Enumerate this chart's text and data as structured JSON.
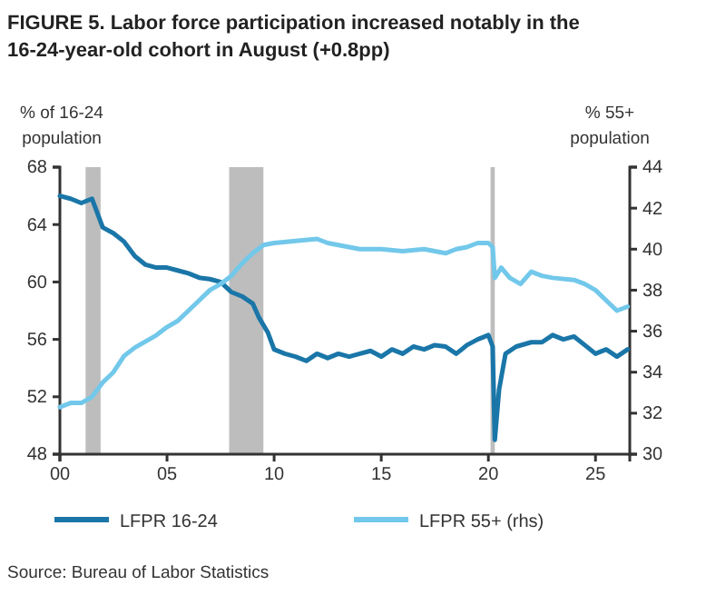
{
  "chart_data": {
    "type": "line",
    "title": "FIGURE 5. Labor force participation increased notably in the 16-24-year-old cohort in August (+0.8pp)",
    "ylabel": "% of 16-24 population",
    "y2label": "% 55+ population",
    "annotations": [
      "Source: Bureau of Labor Statistics"
    ],
    "xlim": [
      2000,
      2026.6
    ],
    "xticks": [
      {
        "value": 2000,
        "label": "00"
      },
      {
        "value": 2005,
        "label": "05"
      },
      {
        "value": 2010,
        "label": "10"
      },
      {
        "value": 2015,
        "label": "15"
      },
      {
        "value": 2020,
        "label": "20"
      },
      {
        "value": 2025,
        "label": "25"
      }
    ],
    "ylim": [
      48,
      68
    ],
    "yticks": [
      48,
      52,
      56,
      60,
      64,
      68
    ],
    "y2lim": [
      30,
      44
    ],
    "y2ticks": [
      30,
      32,
      34,
      36,
      38,
      40,
      42,
      44
    ],
    "bands": [
      {
        "axis": "x",
        "from": 2001.2,
        "to": 2001.9,
        "color": "#bdbdbd"
      },
      {
        "axis": "x",
        "from": 2007.9,
        "to": 2009.5,
        "color": "#bdbdbd"
      },
      {
        "axis": "x",
        "from": 2020.1,
        "to": 2020.3,
        "color": "#bdbdbd"
      }
    ],
    "legend": "bottom",
    "series": [
      {
        "name": "LFPR 16-24",
        "color": "#1a76a8",
        "x": [
          2000,
          2000.5,
          2001,
          2001.5,
          2002,
          2002.5,
          2003,
          2003.5,
          2004,
          2004.5,
          2005,
          2005.5,
          2006,
          2006.5,
          2007,
          2007.5,
          2008,
          2008.5,
          2009,
          2009.3,
          2009.7,
          2010,
          2010.5,
          2011,
          2011.5,
          2012,
          2012.5,
          2013,
          2013.5,
          2014,
          2014.5,
          2015,
          2015.5,
          2016,
          2016.5,
          2017,
          2017.5,
          2018,
          2018.5,
          2019,
          2019.5,
          2020,
          2020.2,
          2020.3,
          2020.5,
          2020.8,
          2021.3,
          2022,
          2022.5,
          2023,
          2023.5,
          2024,
          2024.5,
          2025,
          2025.5,
          2026,
          2026.5
        ],
        "values": [
          66,
          65.8,
          65.5,
          65.8,
          63.8,
          63.4,
          62.8,
          61.8,
          61.2,
          61,
          61,
          60.8,
          60.6,
          60.3,
          60.2,
          60,
          59.3,
          59,
          58.5,
          57.5,
          56.5,
          55.3,
          55,
          54.8,
          54.5,
          55,
          54.7,
          55,
          54.8,
          55,
          55.2,
          54.8,
          55.3,
          55,
          55.5,
          55.3,
          55.6,
          55.5,
          55,
          55.6,
          56,
          56.3,
          55.5,
          49,
          52.5,
          55,
          55.5,
          55.8,
          55.8,
          56.3,
          56,
          56.2,
          55.6,
          55,
          55.3,
          54.8,
          55.3
        ]
      },
      {
        "name": "LFPR 55+ (rhs)",
        "color": "#72c8ea",
        "axis": "y2",
        "x": [
          2000,
          2000.5,
          2001,
          2001.5,
          2002,
          2002.5,
          2003,
          2003.5,
          2004,
          2004.5,
          2005,
          2005.5,
          2006,
          2006.5,
          2007,
          2007.5,
          2008,
          2008.5,
          2009,
          2009.5,
          2010,
          2011,
          2012,
          2012.5,
          2013,
          2014,
          2015,
          2016,
          2017,
          2018,
          2018.5,
          2019,
          2019.5,
          2020,
          2020.2,
          2020.3,
          2020.6,
          2021,
          2021.5,
          2022,
          2022.5,
          2023,
          2024,
          2024.5,
          2025,
          2025.5,
          2026,
          2026.5
        ],
        "values": [
          32.3,
          32.5,
          32.5,
          32.8,
          33.5,
          34,
          34.8,
          35.2,
          35.5,
          35.8,
          36.2,
          36.5,
          37,
          37.5,
          38,
          38.3,
          38.7,
          39.3,
          39.8,
          40.2,
          40.3,
          40.4,
          40.5,
          40.3,
          40.2,
          40,
          40,
          39.9,
          40,
          39.8,
          40,
          40.1,
          40.3,
          40.3,
          40.1,
          38.6,
          39.1,
          38.6,
          38.3,
          38.9,
          38.7,
          38.6,
          38.5,
          38.3,
          38,
          37.5,
          37,
          37.2
        ]
      }
    ]
  }
}
